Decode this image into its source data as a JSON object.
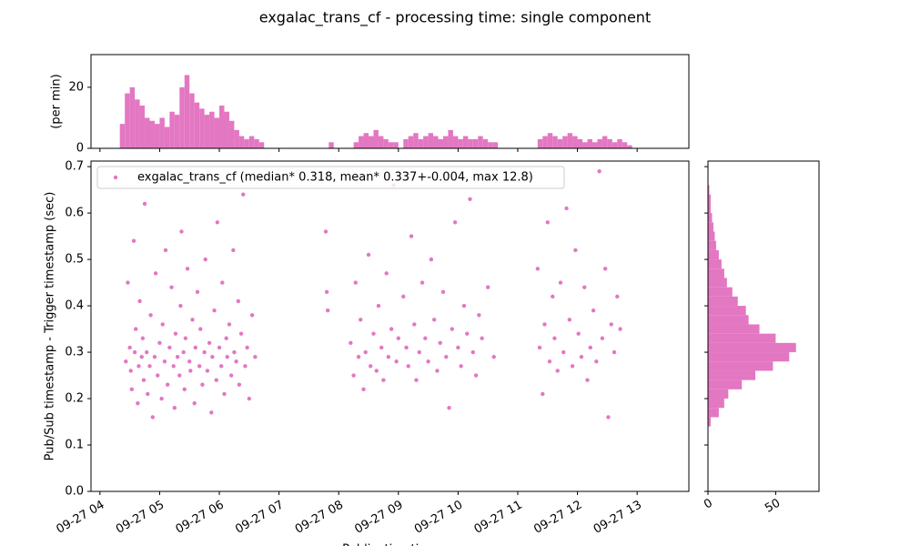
{
  "title": "exgalac_trans_cf - processing time: single component",
  "chart_data": [
    {
      "type": "scatter",
      "color": "#e377c2",
      "ylabel": "Pub/Sub timestamp - Trigger timestamp (sec)",
      "xlabel": "Publication time",
      "legend": "exgalac_trans_cf (median* 0.318, mean* 0.337+-0.004, max 12.8)",
      "legend_loc": "upper left",
      "xlim": [
        231,
        832
      ],
      "ylim": [
        0,
        0.712
      ],
      "xticks": [
        {
          "value": 240,
          "label": "09-27 04"
        },
        {
          "value": 300,
          "label": "09-27 05"
        },
        {
          "value": 360,
          "label": "09-27 06"
        },
        {
          "value": 420,
          "label": "09-27 07"
        },
        {
          "value": 480,
          "label": "09-27 08"
        },
        {
          "value": 540,
          "label": "09-27 09"
        },
        {
          "value": 600,
          "label": "09-27 10"
        },
        {
          "value": 660,
          "label": "09-27 11"
        },
        {
          "value": 720,
          "label": "09-27 12"
        },
        {
          "value": 780,
          "label": "09-27 13"
        }
      ],
      "yticks": [
        {
          "value": 0,
          "label": "0.0"
        },
        0.1,
        0.2,
        0.3,
        0.4,
        0.5,
        0.6,
        0.7
      ],
      "x": [
        266,
        268,
        270,
        271,
        272,
        274,
        275,
        276,
        278,
        279,
        280,
        282,
        283,
        284,
        285,
        287,
        288,
        290,
        291,
        293,
        295,
        296,
        298,
        300,
        302,
        303,
        305,
        306,
        308,
        310,
        312,
        314,
        315,
        316,
        318,
        320,
        321,
        322,
        324,
        325,
        326,
        328,
        330,
        331,
        333,
        335,
        336,
        338,
        340,
        341,
        343,
        345,
        346,
        348,
        350,
        352,
        353,
        355,
        357,
        358,
        360,
        362,
        363,
        365,
        367,
        368,
        370,
        372,
        374,
        375,
        377,
        379,
        380,
        382,
        384,
        386,
        388,
        390,
        393,
        396,
        467,
        468,
        469,
        492,
        495,
        497,
        500,
        502,
        505,
        507,
        510,
        512,
        515,
        518,
        520,
        523,
        525,
        528,
        530,
        533,
        535,
        538,
        540,
        545,
        548,
        550,
        553,
        556,
        558,
        561,
        564,
        567,
        570,
        573,
        576,
        579,
        582,
        585,
        588,
        591,
        594,
        597,
        600,
        603,
        606,
        609,
        612,
        615,
        618,
        621,
        624,
        630,
        636,
        680,
        682,
        685,
        687,
        690,
        692,
        695,
        697,
        700,
        703,
        706,
        709,
        712,
        715,
        718,
        721,
        724,
        727,
        730,
        733,
        736,
        739,
        742,
        745,
        748,
        751,
        754,
        757,
        760,
        763
      ],
      "y": [
        0.28,
        0.45,
        0.31,
        0.26,
        0.22,
        0.54,
        0.3,
        0.35,
        0.19,
        0.27,
        0.41,
        0.29,
        0.33,
        0.24,
        0.62,
        0.3,
        0.21,
        0.27,
        0.38,
        0.16,
        0.29,
        0.47,
        0.25,
        0.32,
        0.2,
        0.36,
        0.28,
        0.52,
        0.23,
        0.31,
        0.44,
        0.27,
        0.18,
        0.34,
        0.29,
        0.25,
        0.4,
        0.56,
        0.3,
        0.22,
        0.33,
        0.48,
        0.28,
        0.26,
        0.37,
        0.19,
        0.31,
        0.43,
        0.27,
        0.35,
        0.23,
        0.3,
        0.5,
        0.26,
        0.32,
        0.17,
        0.29,
        0.39,
        0.24,
        0.58,
        0.31,
        0.27,
        0.45,
        0.21,
        0.33,
        0.29,
        0.36,
        0.25,
        0.52,
        0.3,
        0.28,
        0.41,
        0.23,
        0.34,
        0.64,
        0.27,
        0.31,
        0.2,
        0.38,
        0.29,
        0.56,
        0.43,
        0.39,
        0.32,
        0.25,
        0.45,
        0.29,
        0.37,
        0.22,
        0.3,
        0.51,
        0.27,
        0.34,
        0.26,
        0.4,
        0.31,
        0.24,
        0.47,
        0.29,
        0.35,
        0.66,
        0.28,
        0.33,
        0.42,
        0.31,
        0.27,
        0.55,
        0.36,
        0.24,
        0.3,
        0.45,
        0.33,
        0.28,
        0.5,
        0.37,
        0.26,
        0.32,
        0.43,
        0.29,
        0.18,
        0.35,
        0.58,
        0.31,
        0.27,
        0.4,
        0.34,
        0.63,
        0.3,
        0.25,
        0.38,
        0.33,
        0.44,
        0.29,
        0.48,
        0.31,
        0.21,
        0.36,
        0.58,
        0.28,
        0.42,
        0.33,
        0.26,
        0.45,
        0.3,
        0.61,
        0.37,
        0.27,
        0.52,
        0.34,
        0.29,
        0.44,
        0.24,
        0.31,
        0.39,
        0.28,
        0.69,
        0.33,
        0.48,
        0.16,
        0.36,
        0.3,
        0.42,
        0.35
      ]
    },
    {
      "type": "histogram",
      "color": "#e377c2",
      "ylabel": "(per min)",
      "ylim": [
        0,
        30.7
      ],
      "yticks": [
        0,
        20
      ],
      "bins": [
        260,
        265,
        270,
        275,
        280,
        285,
        290,
        295,
        300,
        305,
        310,
        315,
        320,
        325,
        330,
        335,
        340,
        345,
        350,
        355,
        360,
        365,
        370,
        375,
        380,
        385,
        390,
        395,
        400,
        405,
        410,
        415,
        420,
        425,
        430,
        435,
        440,
        445,
        450,
        455,
        460,
        465,
        470,
        475,
        480,
        485,
        490,
        495,
        500,
        505,
        510,
        515,
        520,
        525,
        530,
        535,
        540,
        545,
        550,
        555,
        560,
        565,
        570,
        575,
        580,
        585,
        590,
        595,
        600,
        605,
        610,
        615,
        620,
        625,
        630,
        635,
        640,
        645,
        650,
        655,
        660,
        665,
        670,
        675,
        680,
        685,
        690,
        695,
        700,
        705,
        710,
        715,
        720,
        725,
        730,
        735,
        740,
        745,
        750,
        755,
        760,
        765,
        770,
        775
      ],
      "values": [
        8,
        18,
        20,
        16,
        14,
        10,
        9,
        8,
        10,
        7,
        12,
        11,
        20,
        24,
        18,
        15,
        13,
        11,
        12,
        10,
        14,
        12,
        9,
        6,
        4,
        3,
        4,
        3,
        2,
        0,
        0,
        0,
        0,
        0,
        0,
        0,
        0,
        0,
        0,
        0,
        0,
        0,
        2,
        0,
        0,
        0,
        0,
        2,
        4,
        5,
        4,
        6,
        4,
        3,
        2,
        2,
        0,
        3,
        4,
        5,
        3,
        4,
        5,
        4,
        3,
        4,
        6,
        4,
        3,
        4,
        3,
        3,
        4,
        3,
        2,
        2,
        0,
        0,
        0,
        0,
        0,
        0,
        0,
        0,
        3,
        4,
        5,
        4,
        3,
        4,
        5,
        4,
        3,
        2,
        3,
        2,
        3,
        4,
        3,
        2,
        3,
        2,
        1
      ]
    },
    {
      "type": "histogram",
      "orientation": "horizontal",
      "color": "#e377c2",
      "xlim": [
        0,
        82
      ],
      "xticks": [
        0,
        50
      ],
      "bins": [
        0.14,
        0.16,
        0.18,
        0.2,
        0.22,
        0.24,
        0.26,
        0.28,
        0.3,
        0.32,
        0.34,
        0.36,
        0.38,
        0.4,
        0.42,
        0.44,
        0.46,
        0.48,
        0.5,
        0.52,
        0.54,
        0.56,
        0.58,
        0.6,
        0.62,
        0.64,
        0.66
      ],
      "values": [
        2,
        8,
        12,
        15,
        25,
        35,
        48,
        60,
        65,
        50,
        38,
        30,
        28,
        22,
        18,
        14,
        12,
        10,
        8,
        6,
        5,
        4,
        3,
        2,
        2,
        1
      ]
    }
  ]
}
